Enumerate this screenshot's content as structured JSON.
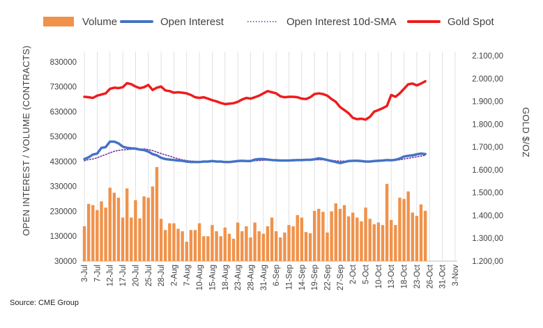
{
  "chart_data": {
    "type": "bar",
    "source_label": "Source: CME Group",
    "ylabel_left": "OPEN INTEREST / VOLUME (CONTRACTS)",
    "ylabel_right": "GOLD $/OZ",
    "y_left_ticks": [
      "830000",
      "730000",
      "630000",
      "530000",
      "430000",
      "330000",
      "230000",
      "130000",
      "30000"
    ],
    "y_right_ticks": [
      "2.100,00",
      "2.000,00",
      "1.900,00",
      "1.800,00",
      "1.700,00",
      "1.600,00",
      "1.500,00",
      "1.400,00",
      "1.300,00",
      "1.200,00"
    ],
    "ylim_left": [
      30000,
      855000
    ],
    "ylim_right": [
      1200,
      2100
    ],
    "x_ticks": [
      "3-Jul",
      "7-Jul",
      "12-Jul",
      "17-Jul",
      "20-Jul",
      "25-Jul",
      "28-Jul",
      "2-Aug",
      "7-Aug",
      "10-Aug",
      "15-Aug",
      "18-Aug",
      "23-Aug",
      "28-Aug",
      "31-Aug",
      "6-Sep",
      "11-Sep",
      "14-Sep",
      "19-Sep",
      "22-Sep",
      "27-Sep",
      "2-Oct",
      "5-Oct",
      "10-Oct",
      "13-Oct",
      "18-Oct",
      "23-Oct",
      "26-Oct",
      "31-Oct",
      "3-Nov"
    ],
    "x_tick_positions": [
      0,
      3,
      6,
      9,
      12,
      15,
      18,
      21,
      24,
      27,
      30,
      33,
      36,
      39,
      42,
      45,
      48,
      51,
      54,
      57,
      60,
      63,
      66,
      69,
      72,
      75,
      78,
      81,
      84,
      87
    ],
    "n_slots": 88,
    "legend": [
      {
        "label": "Volume",
        "kind": "bar",
        "color": "#f0924a"
      },
      {
        "label": "Open Interest",
        "kind": "line",
        "color": "#4472c4"
      },
      {
        "label": "Open Interest 10d-SMA",
        "kind": "dotted",
        "color": "#7030a0"
      },
      {
        "label": "Gold Spot",
        "kind": "line",
        "color": "#ee1c1c"
      }
    ],
    "series": [
      {
        "name": "Volume",
        "axis": "left",
        "values": [
          170000,
          260000,
          255000,
          235000,
          270000,
          245000,
          325000,
          305000,
          285000,
          205000,
          322000,
          205000,
          275000,
          202000,
          290000,
          285000,
          330000,
          408000,
          200000,
          155000,
          182000,
          182000,
          160000,
          150000,
          108000,
          155000,
          155000,
          182000,
          130000,
          130000,
          175000,
          150000,
          130000,
          165000,
          140000,
          120000,
          185000,
          150000,
          170000,
          125000,
          185000,
          150000,
          140000,
          170000,
          205000,
          150000,
          125000,
          145000,
          175000,
          170000,
          215000,
          205000,
          147000,
          142000,
          232000,
          240000,
          228000,
          145000,
          230000,
          262000,
          240000,
          255000,
          210000,
          225000,
          205000,
          190000,
          245000,
          200000,
          178000,
          185000,
          175000,
          340000,
          195000,
          175000,
          285000,
          280000,
          310000,
          225000,
          212000,
          258000,
          232000
        ],
        "color": "#f0924a"
      },
      {
        "name": "Open Interest",
        "axis": "left",
        "values": [
          440000,
          447000,
          458000,
          462000,
          485000,
          488000,
          510000,
          510000,
          503000,
          490000,
          485000,
          483000,
          482000,
          478000,
          476000,
          470000,
          460000,
          455000,
          445000,
          440000,
          438000,
          436000,
          434000,
          433000,
          430000,
          428000,
          428000,
          428000,
          430000,
          430000,
          432000,
          430000,
          430000,
          428000,
          428000,
          430000,
          432000,
          433000,
          432000,
          432000,
          438000,
          440000,
          440000,
          438000,
          436000,
          435000,
          434000,
          434000,
          434000,
          435000,
          436000,
          436000,
          437000,
          437000,
          439000,
          443000,
          440000,
          436000,
          432000,
          428000,
          424000,
          428000,
          432000,
          433000,
          433000,
          432000,
          430000,
          430000,
          432000,
          433000,
          434000,
          436000,
          435000,
          437000,
          442000,
          450000,
          453000,
          455000,
          459000,
          462000,
          460000
        ],
        "color": "#4472c4"
      },
      {
        "name": "Open Interest 10d-SMA",
        "axis": "left",
        "values": [
          433000,
          438000,
          440000,
          445000,
          452000,
          458000,
          465000,
          471000,
          475000,
          477000,
          478000,
          479000,
          480000,
          480000,
          481000,
          478000,
          474000,
          468000,
          462000,
          457000,
          452000,
          446000,
          441000,
          437000,
          434000,
          432000,
          431000,
          430000,
          430000,
          430000,
          430000,
          430000,
          430000,
          430000,
          430000,
          430000,
          430000,
          431000,
          431000,
          432000,
          433000,
          434000,
          435000,
          436000,
          436000,
          436000,
          435000,
          435000,
          435000,
          435000,
          435000,
          435000,
          435000,
          436000,
          437000,
          437000,
          437000,
          436000,
          435000,
          433000,
          432000,
          432000,
          432000,
          432000,
          432000,
          432000,
          432000,
          432000,
          432000,
          432000,
          432000,
          433000,
          434000,
          435000,
          437000,
          440000,
          443000,
          446000,
          449000,
          452000,
          455000
        ],
        "color": "#7030a0"
      },
      {
        "name": "Gold Spot",
        "axis": "right",
        "values": [
          1920,
          1918,
          1915,
          1925,
          1930,
          1935,
          1955,
          1960,
          1958,
          1962,
          1980,
          1975,
          1965,
          1958,
          1962,
          1972,
          1950,
          1960,
          1965,
          1948,
          1945,
          1938,
          1940,
          1938,
          1935,
          1928,
          1918,
          1915,
          1918,
          1912,
          1905,
          1900,
          1893,
          1888,
          1890,
          1892,
          1898,
          1908,
          1915,
          1912,
          1918,
          1925,
          1935,
          1945,
          1940,
          1935,
          1922,
          1918,
          1920,
          1920,
          1918,
          1912,
          1910,
          1918,
          1932,
          1935,
          1932,
          1925,
          1910,
          1898,
          1875,
          1862,
          1848,
          1828,
          1822,
          1824,
          1820,
          1832,
          1855,
          1862,
          1870,
          1880,
          1928,
          1920,
          1935,
          1955,
          1975,
          1978,
          1970,
          1978,
          1988
        ],
        "color": "#ee1c1c"
      }
    ]
  }
}
